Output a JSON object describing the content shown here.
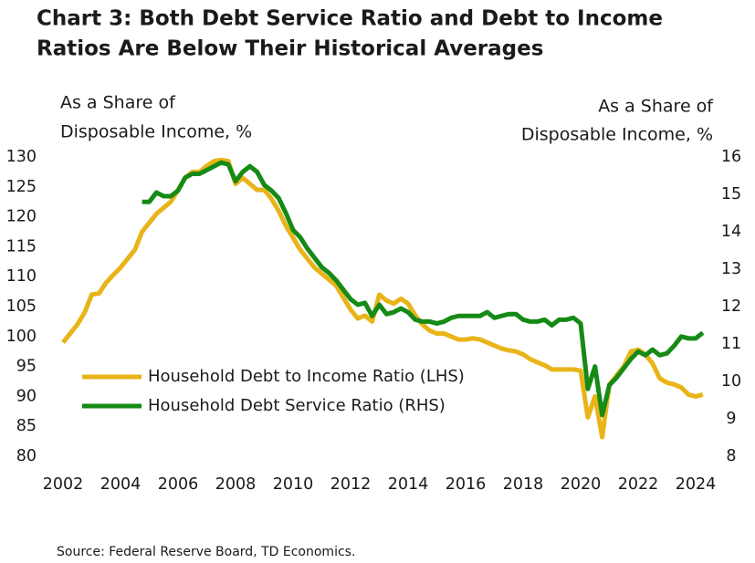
{
  "chart_data": {
    "type": "line",
    "title": [
      "Chart 3: Both Debt Service Ratio and Debt to Income",
      "Ratios Are Below Their Historical Averages"
    ],
    "ylabel": [
      "As a Share of",
      "Disposable Income, %"
    ],
    "y2label": [
      "As a Share of",
      "Disposable Income, %"
    ],
    "source": "Source: Federal Reserve Board, TD Economics.",
    "x": [
      2002,
      2002.25,
      2002.5,
      2002.75,
      2003,
      2003.25,
      2003.5,
      2003.75,
      2004,
      2004.25,
      2004.5,
      2004.75,
      2005,
      2005.25,
      2005.5,
      2005.75,
      2006,
      2006.25,
      2006.5,
      2006.75,
      2007,
      2007.25,
      2007.5,
      2007.75,
      2008,
      2008.25,
      2008.5,
      2008.75,
      2009,
      2009.25,
      2009.5,
      2009.75,
      2010,
      2010.25,
      2010.5,
      2010.75,
      2011,
      2011.25,
      2011.5,
      2011.75,
      2012,
      2012.25,
      2012.5,
      2012.75,
      2013,
      2013.25,
      2013.5,
      2013.75,
      2014,
      2014.25,
      2014.5,
      2014.75,
      2015,
      2015.25,
      2015.5,
      2015.75,
      2016,
      2016.25,
      2016.5,
      2016.75,
      2017,
      2017.25,
      2017.5,
      2017.75,
      2018,
      2018.25,
      2018.5,
      2018.75,
      2019,
      2019.25,
      2019.5,
      2019.75,
      2020,
      2020.25,
      2020.5,
      2020.75,
      2021,
      2021.25,
      2021.5,
      2021.75,
      2022,
      2022.25,
      2022.5,
      2022.75,
      2023,
      2023.25,
      2023.5,
      2023.75,
      2024,
      2024.25
    ],
    "series": [
      {
        "name": "Household Debt to Income Ratio (LHS)",
        "color": "#e8b418",
        "axis": "y",
        "values": [
          99,
          100.5,
          102,
          104,
          107,
          107.2,
          109,
          110.3,
          111.5,
          113,
          114.5,
          117.5,
          119,
          120.5,
          121.5,
          122.5,
          124.5,
          126.5,
          127.5,
          127.5,
          128.5,
          129.3,
          129.5,
          129.3,
          125.5,
          126.5,
          125.5,
          124.5,
          124.5,
          123,
          121,
          118.5,
          116.5,
          114.5,
          113,
          111.5,
          110.5,
          109.5,
          108.5,
          106.5,
          104.5,
          103,
          103.5,
          102.5,
          107,
          106,
          105.5,
          106.3,
          105.5,
          103.5,
          102,
          101,
          100.5,
          100.5,
          100,
          99.5,
          99.5,
          99.7,
          99.5,
          99,
          98.5,
          98,
          97.7,
          97.5,
          97,
          96.2,
          95.7,
          95.2,
          94.5,
          94.5,
          94.5,
          94.5,
          94.3,
          86.5,
          90,
          83.2,
          92,
          93.5,
          95,
          97.5,
          97.8,
          97,
          95.5,
          93,
          92.3,
          92,
          91.5,
          90.3,
          90,
          90.3
        ]
      },
      {
        "name": "Household Debt Service Ratio (RHS)",
        "color": "#168a16",
        "axis": "y2",
        "values": [
          null,
          null,
          null,
          null,
          null,
          null,
          null,
          null,
          null,
          null,
          null,
          14.8,
          14.8,
          15.05,
          14.95,
          14.95,
          15.1,
          15.45,
          15.55,
          15.55,
          15.65,
          15.75,
          15.85,
          15.8,
          15.35,
          15.6,
          15.75,
          15.6,
          15.25,
          15.1,
          14.9,
          14.5,
          14.05,
          13.85,
          13.55,
          13.3,
          13.05,
          12.9,
          12.7,
          12.45,
          12.2,
          12.05,
          12.1,
          11.75,
          12.05,
          11.8,
          11.85,
          11.95,
          11.85,
          11.65,
          11.6,
          11.6,
          11.55,
          11.6,
          11.7,
          11.75,
          11.75,
          11.75,
          11.75,
          11.85,
          11.7,
          11.75,
          11.8,
          11.8,
          11.65,
          11.6,
          11.6,
          11.65,
          11.5,
          11.65,
          11.65,
          11.7,
          11.55,
          9.8,
          10.4,
          9.1,
          9.9,
          10.1,
          10.35,
          10.6,
          10.8,
          10.7,
          10.85,
          10.7,
          10.75,
          10.95,
          11.2,
          11.15,
          11.15,
          11.3
        ]
      }
    ],
    "xlim": [
      2002,
      2024.4
    ],
    "xticks": [
      2002,
      2004,
      2006,
      2008,
      2010,
      2012,
      2014,
      2016,
      2018,
      2020,
      2022,
      2024
    ],
    "ylim": [
      80,
      130
    ],
    "yticks": [
      80,
      85,
      90,
      95,
      100,
      105,
      110,
      115,
      120,
      125,
      130
    ],
    "y2lim": [
      8,
      16
    ],
    "y2ticks": [
      8,
      9,
      10,
      11,
      12,
      13,
      14,
      15,
      16
    ],
    "grid": false,
    "legend": "lower left"
  }
}
